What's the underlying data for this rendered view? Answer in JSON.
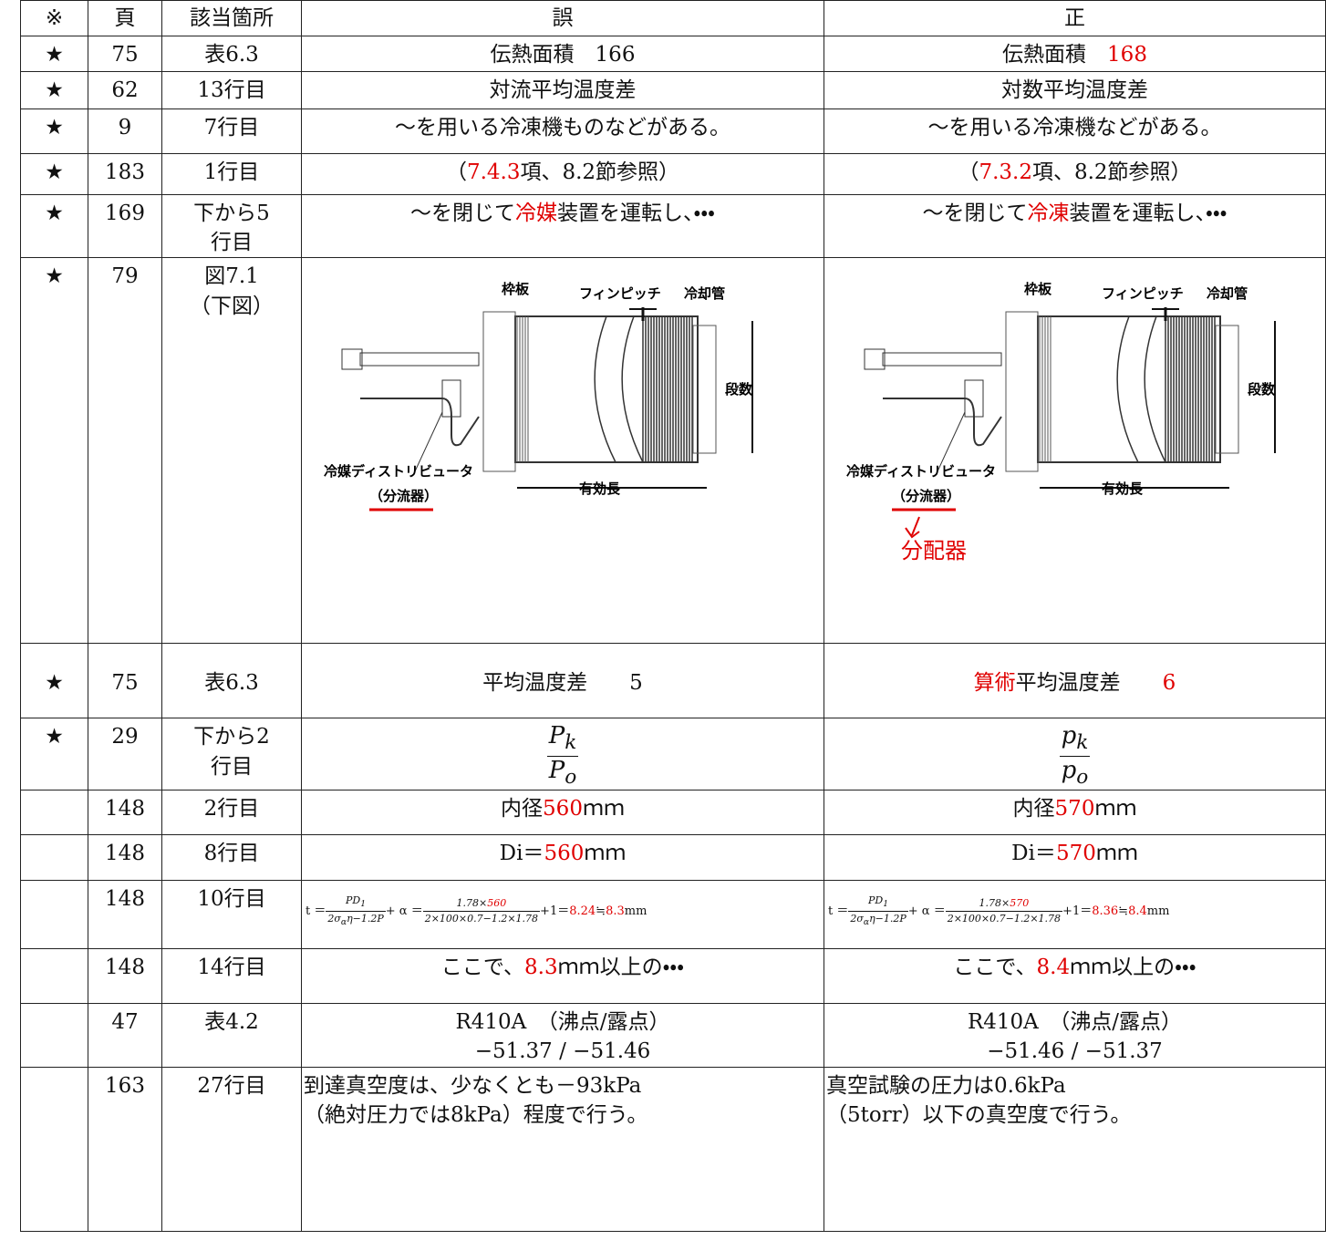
{
  "table": {
    "header": [
      "※",
      "頁",
      "該当箇所",
      "誤",
      "正"
    ],
    "rows": [
      {
        "mark": "★",
        "page": "75",
        "location": [
          "表6.3"
        ],
        "wrong": [
          [
            {
              "text": "伝熱面積　166"
            }
          ]
        ],
        "right": [
          [
            {
              "text": "伝熱面積　"
            },
            {
              "text": "168",
              "color": "#e00000"
            }
          ]
        ]
      },
      {
        "mark": "★",
        "page": "62",
        "location": [
          "13行目"
        ],
        "wrong": [
          [
            {
              "text": "対流平均温度差"
            }
          ]
        ],
        "right": [
          [
            {
              "text": "対数平均温度差"
            }
          ]
        ]
      },
      {
        "mark": "★",
        "page": "9",
        "location": [
          "7行目"
        ],
        "wrong": [
          [
            {
              "text": "～を用いる冷凍機ものなどがある。"
            }
          ]
        ],
        "right": [
          [
            {
              "text": "～を用いる冷凍機などがある。"
            }
          ]
        ]
      },
      {
        "mark": "★",
        "page": "183",
        "location": [
          "1行目"
        ],
        "wrong": [
          [
            {
              "text": "（"
            },
            {
              "text": "7.4.3",
              "color": "#e00000"
            },
            {
              "text": "項、8.2節参照）"
            }
          ]
        ],
        "right": [
          [
            {
              "text": "（"
            },
            {
              "text": "7.3.2",
              "color": "#e00000"
            },
            {
              "text": "項、8.2節参照）"
            }
          ]
        ]
      },
      {
        "mark": "★",
        "page": "169",
        "location": [
          "下から5",
          "行目"
        ],
        "wrong": [
          [
            {
              "text": "～を閉じて"
            },
            {
              "text": "冷媒",
              "color": "#e00000"
            },
            {
              "text": "装置を運転し、・・・"
            }
          ]
        ],
        "right": [
          [
            {
              "text": "～を閉じて"
            },
            {
              "text": "冷凍",
              "color": "#e00000"
            },
            {
              "text": "装置を運転し、・・・"
            }
          ]
        ]
      },
      {
        "mark": "★",
        "page": "79",
        "location": [
          "図7.1",
          "（下図）"
        ],
        "wrong": {
          "labels": {
            "frame": "枠板",
            "fin_pitch": "フィンピッチ",
            "tube": "冷却管",
            "rows": "段数",
            "distributor": "冷媒ディストリビュータ",
            "divider": "（分流器）",
            "length": "有効長"
          }
        },
        "right": {
          "labels": {
            "frame": "枠板",
            "fin_pitch": "フィンピッチ",
            "tube": "冷却管",
            "rows": "段数",
            "distributor": "冷媒ディストリビュータ",
            "divider": "（分流器）",
            "length": "有効長"
          },
          "annotation": {
            "text": "分配器",
            "color": "#e00000"
          }
        }
      },
      {
        "mark": "★",
        "page": "75",
        "location": [
          "表6.3"
        ],
        "wrong": [
          [
            {
              "text": "平均温度差　　5"
            }
          ]
        ],
        "right": [
          [
            {
              "text": "算術",
              "color": "#e00000"
            },
            {
              "text": "平均温度差　　"
            },
            {
              "text": "6",
              "color": "#e00000"
            }
          ]
        ]
      },
      {
        "mark": "★",
        "page": "29",
        "location": [
          "下から2",
          "行目"
        ],
        "wrong": [
          [
            {
              "frac": [
                [
                  {
                    "text": "P"
                  },
                  {
                    "text": "k",
                    "sub": true
                  }
                ],
                [
                  {
                    "text": "P"
                  },
                  {
                    "text": "o",
                    "sub": true
                  }
                ]
              ]
            }
          ]
        ],
        "right": [
          [
            {
              "frac": [
                [
                  {
                    "text": "p"
                  },
                  {
                    "text": "k",
                    "sub": true
                  }
                ],
                [
                  {
                    "text": "p"
                  },
                  {
                    "text": "o",
                    "sub": true
                  }
                ]
              ]
            }
          ]
        ]
      },
      {
        "page": "148",
        "location": [
          "2行目"
        ],
        "wrong": [
          [
            {
              "text": "内径"
            },
            {
              "text": "560",
              "color": "#e00000"
            },
            {
              "text": "ｍｍ"
            }
          ]
        ],
        "right": [
          [
            {
              "text": "内径"
            },
            {
              "text": "570",
              "color": "#e00000"
            },
            {
              "text": "ｍｍ"
            }
          ]
        ]
      },
      {
        "page": "148",
        "location": [
          "8行目"
        ],
        "wrong": [
          [
            {
              "text": "Di＝"
            },
            {
              "text": "560",
              "color": "#e00000"
            },
            {
              "text": "ｍｍ"
            }
          ]
        ],
        "right": [
          [
            {
              "text": "Di＝"
            },
            {
              "text": "570",
              "color": "#e00000"
            },
            {
              "text": "ｍｍ"
            }
          ]
        ]
      },
      {
        "page": "148",
        "location": [
          "10行目"
        ],
        "wrong": [
          [
            {
              "text": "t ＝"
            },
            {
              "frac": [
                [
                  {
                    "text": "PD"
                  },
                  {
                    "text": "1",
                    "sub": true
                  }
                ],
                [
                  {
                    "text": "2σ"
                  },
                  {
                    "text": "α",
                    "sub": true
                  },
                  {
                    "text": "η−1.2P"
                  }
                ]
              ]
            },
            {
              "text": "+ α ＝"
            },
            {
              "frac": [
                [
                  {
                    "text": "1.78×"
                  },
                  {
                    "text": "560",
                    "color": "#e00000"
                  }
                ],
                [
                  {
                    "text": "2×100×0.7−1.2×1.78"
                  }
                ]
              ]
            },
            {
              "text": "+1＝"
            },
            {
              "text": "8.24",
              "color": "#e00000"
            },
            {
              "text": "≒"
            },
            {
              "text": "8.3",
              "color": "#e00000"
            },
            {
              "text": "mm"
            }
          ]
        ],
        "right": [
          [
            {
              "text": "t ＝"
            },
            {
              "frac": [
                [
                  {
                    "text": "PD"
                  },
                  {
                    "text": "1",
                    "sub": true
                  }
                ],
                [
                  {
                    "text": "2σ"
                  },
                  {
                    "text": "α",
                    "sub": true
                  },
                  {
                    "text": "η−1.2P"
                  }
                ]
              ]
            },
            {
              "text": "+ α ＝"
            },
            {
              "frac": [
                [
                  {
                    "text": "1.78×"
                  },
                  {
                    "text": "570",
                    "color": "#e00000"
                  }
                ],
                [
                  {
                    "text": "2×100×0.7−1.2×1.78"
                  }
                ]
              ]
            },
            {
              "text": "+1＝"
            },
            {
              "text": "8.36",
              "color": "#e00000"
            },
            {
              "text": "≒"
            },
            {
              "text": "8.4",
              "color": "#e00000"
            },
            {
              "text": "mm"
            }
          ]
        ]
      },
      {
        "page": "148",
        "location": [
          "14行目"
        ],
        "wrong": [
          [
            {
              "text": "ここで、"
            },
            {
              "text": "8.3",
              "color": "#e00000"
            },
            {
              "text": "ｍｍ以上の・・・"
            }
          ]
        ],
        "right": [
          [
            {
              "text": "ここで、"
            },
            {
              "text": "8.4",
              "color": "#e00000"
            },
            {
              "text": "ｍｍ以上の・・・"
            }
          ]
        ]
      },
      {
        "page": "47",
        "location": [
          "表4.2"
        ],
        "wrong": [
          [
            {
              "text": "R410A　（沸点/露点）"
            }
          ],
          [
            {
              "text": "−51.37 / −51.46"
            }
          ]
        ],
        "right": [
          [
            {
              "text": "R410A　（沸点/露点）"
            }
          ],
          [
            {
              "text": "−51.46 / −51.37"
            }
          ]
        ]
      },
      {
        "page": "163",
        "location": [
          "27行目"
        ],
        "wrong": [
          [
            {
              "text": "到達真空度は、少なくとも－93kPa"
            }
          ],
          [
            {
              "text": "（絶対圧力では8kPa）程度で行う。"
            }
          ]
        ],
        "right": [
          [
            {
              "text": "真空試験の圧力は0.6kPa"
            }
          ],
          [
            {
              "text": "（5torr）以下の真空度で行う。"
            }
          ]
        ]
      }
    ]
  }
}
